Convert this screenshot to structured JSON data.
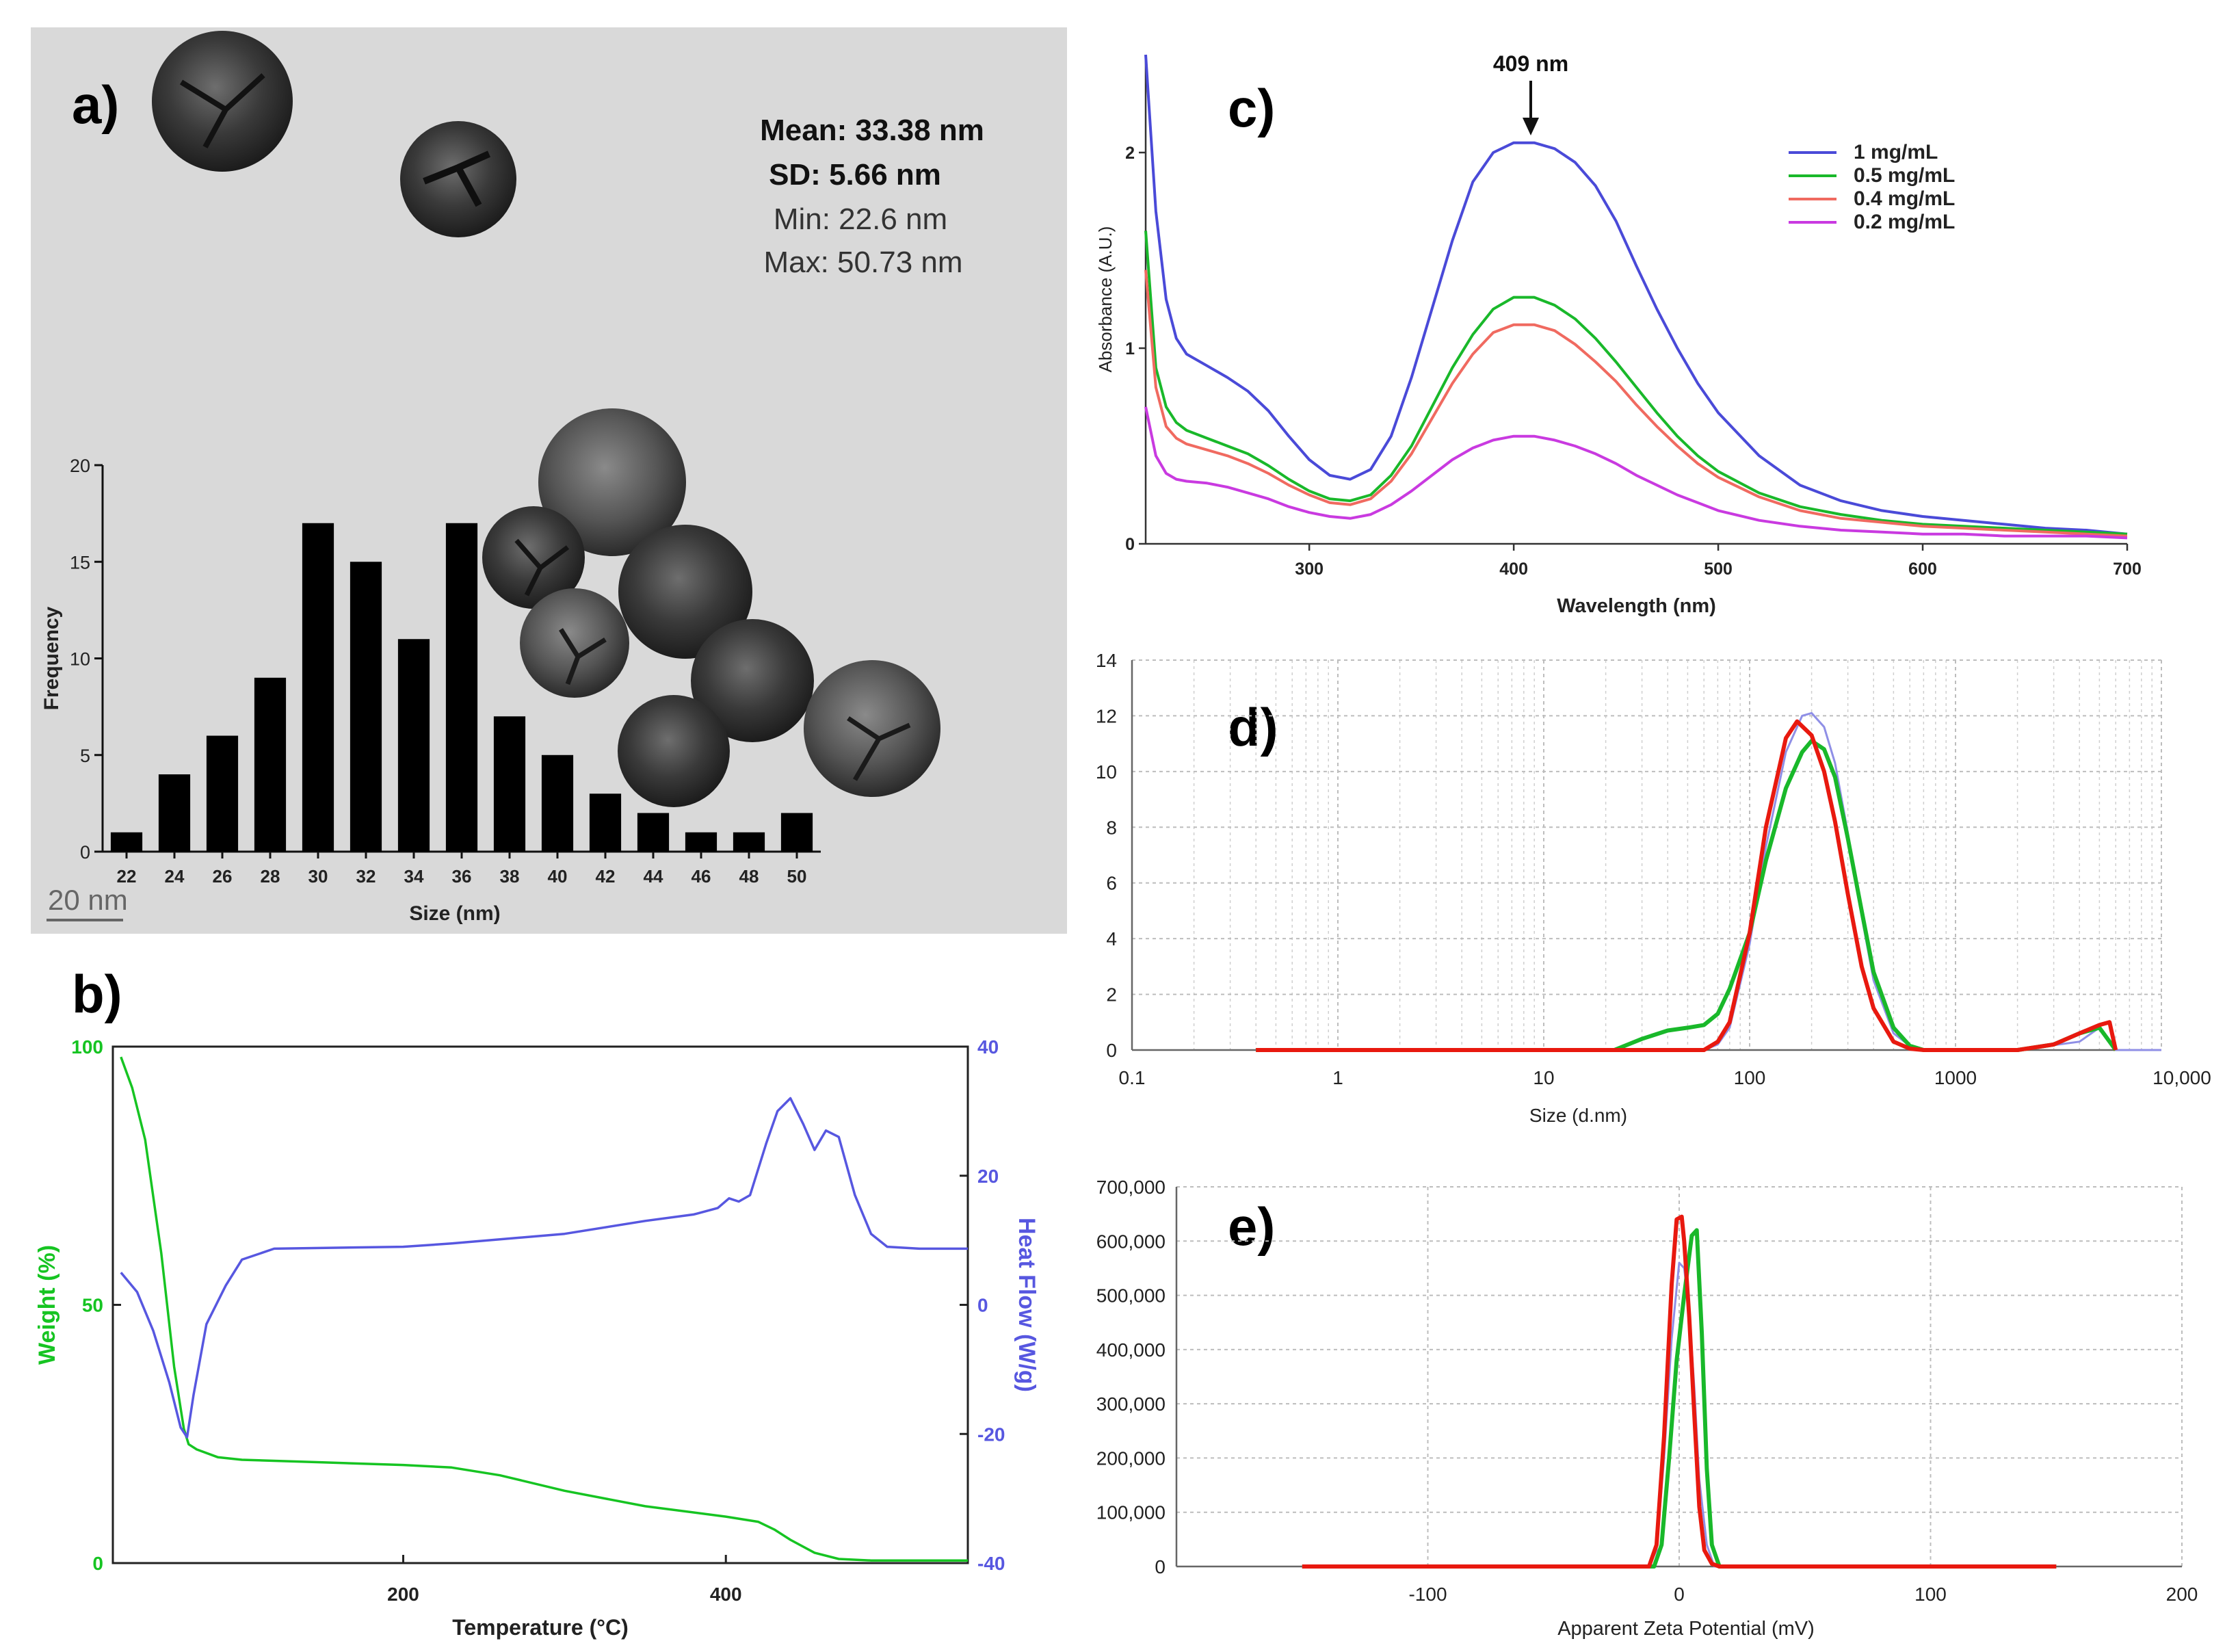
{
  "panels": {
    "a": {
      "label": "a)",
      "stats": {
        "mean": "Mean: 33.38 nm",
        "sd": "SD: 5.66 nm",
        "min": "Min: 22.6 nm",
        "max": "Max: 50.73 nm"
      },
      "scale_bar": "20 nm"
    },
    "b": {
      "label": "b)"
    },
    "c": {
      "label": "c)",
      "annotation": "409 nm"
    },
    "d": {
      "label": "d)"
    },
    "e": {
      "label": "e)"
    }
  },
  "colors": {
    "blue": "#4a4ad8",
    "green": "#19b82a",
    "red": "#e8190f",
    "salmon": "#f06a60",
    "magenta": "#c93ae0",
    "dls_blue": "#8f8fe6",
    "tga_green": "#16c422",
    "tga_blue": "#5757e0"
  },
  "chart_data": [
    {
      "id": "a",
      "type": "bar",
      "title": "",
      "xlabel": "Size (nm)",
      "ylabel": "Frequency",
      "categories": [
        "22",
        "24",
        "26",
        "28",
        "30",
        "32",
        "34",
        "36",
        "38",
        "40",
        "42",
        "44",
        "46",
        "48",
        "50"
      ],
      "values": [
        1,
        4,
        6,
        9,
        17,
        15,
        11,
        17,
        7,
        5,
        3,
        2,
        1,
        1,
        2
      ],
      "ylim": [
        0,
        20
      ],
      "yticks": [
        0,
        5,
        10,
        15,
        20
      ]
    },
    {
      "id": "b",
      "type": "line",
      "xlabel": "Temperature (°C)",
      "ylabel": "Weight (%)",
      "ylabel_right": "Heat Flow (W/g)",
      "xlim": [
        20,
        550
      ],
      "ylim": [
        0,
        100
      ],
      "ylim_right": [
        -40,
        40
      ],
      "xticks": [
        200,
        400
      ],
      "yticks": [
        0,
        50,
        100
      ],
      "yticks_right": [
        -40,
        -20,
        0,
        20,
        40
      ],
      "series": [
        {
          "name": "Weight",
          "axis": "left",
          "color": "#16c422",
          "x": [
            25,
            32,
            40,
            50,
            58,
            64,
            67,
            72,
            85,
            100,
            150,
            200,
            230,
            260,
            300,
            350,
            400,
            420,
            430,
            440,
            455,
            470,
            490,
            520,
            550
          ],
          "y": [
            98,
            92,
            82,
            60,
            38,
            26,
            23,
            22,
            20.5,
            20,
            19.5,
            19,
            18.5,
            17,
            14,
            11,
            9,
            8,
            6.5,
            4.5,
            2,
            0.8,
            0.5,
            0.5,
            0.5
          ]
        },
        {
          "name": "Heat Flow",
          "axis": "right",
          "color": "#5757e0",
          "x": [
            25,
            35,
            45,
            55,
            62,
            66,
            70,
            78,
            90,
            100,
            120,
            200,
            230,
            300,
            350,
            380,
            395,
            402,
            408,
            415,
            425,
            432,
            440,
            448,
            455,
            462,
            470,
            480,
            490,
            500,
            520,
            550
          ],
          "y": [
            5,
            2,
            -4,
            -12,
            -19,
            -20.5,
            -14,
            -3,
            3,
            7,
            8.7,
            9,
            9.5,
            11,
            13,
            14,
            15,
            16.5,
            16,
            17,
            25,
            30,
            32,
            28,
            24,
            27,
            26,
            17,
            11,
            9,
            8.7,
            8.7
          ]
        }
      ]
    },
    {
      "id": "c",
      "type": "line",
      "xlabel": "Wavelength (nm)",
      "ylabel": "Absorbance (A.U.)",
      "xlim": [
        220,
        700
      ],
      "ylim": [
        0,
        2.5
      ],
      "xticks": [
        300,
        400,
        500,
        600,
        700
      ],
      "yticks": [
        0,
        1,
        2
      ],
      "legend_position": "top-right",
      "x": [
        220,
        225,
        230,
        235,
        240,
        250,
        260,
        270,
        280,
        290,
        300,
        310,
        320,
        330,
        340,
        350,
        360,
        370,
        380,
        390,
        400,
        410,
        420,
        430,
        440,
        450,
        460,
        470,
        480,
        490,
        500,
        520,
        540,
        560,
        580,
        600,
        620,
        640,
        660,
        680,
        700
      ],
      "series": [
        {
          "name": "1 mg/mL",
          "color": "#4a4ad8",
          "values": [
            2.5,
            1.7,
            1.25,
            1.05,
            0.97,
            0.91,
            0.85,
            0.78,
            0.68,
            0.55,
            0.43,
            0.35,
            0.33,
            0.38,
            0.55,
            0.85,
            1.2,
            1.55,
            1.85,
            2.0,
            2.05,
            2.05,
            2.02,
            1.95,
            1.83,
            1.65,
            1.42,
            1.2,
            1.0,
            0.82,
            0.67,
            0.45,
            0.3,
            0.22,
            0.17,
            0.14,
            0.12,
            0.1,
            0.08,
            0.07,
            0.05
          ]
        },
        {
          "name": "0.5 mg/mL",
          "color": "#19b82a",
          "values": [
            1.6,
            0.9,
            0.7,
            0.62,
            0.58,
            0.54,
            0.5,
            0.46,
            0.4,
            0.33,
            0.27,
            0.23,
            0.22,
            0.25,
            0.35,
            0.5,
            0.7,
            0.9,
            1.07,
            1.2,
            1.26,
            1.26,
            1.22,
            1.15,
            1.05,
            0.93,
            0.8,
            0.67,
            0.55,
            0.45,
            0.37,
            0.26,
            0.19,
            0.15,
            0.12,
            0.1,
            0.09,
            0.08,
            0.07,
            0.06,
            0.05
          ]
        },
        {
          "name": "0.4 mg/mL",
          "color": "#f06a60",
          "values": [
            1.4,
            0.8,
            0.6,
            0.54,
            0.51,
            0.48,
            0.45,
            0.41,
            0.36,
            0.3,
            0.25,
            0.21,
            0.2,
            0.23,
            0.32,
            0.46,
            0.64,
            0.82,
            0.97,
            1.08,
            1.12,
            1.12,
            1.09,
            1.02,
            0.93,
            0.83,
            0.71,
            0.6,
            0.5,
            0.41,
            0.34,
            0.24,
            0.17,
            0.13,
            0.11,
            0.09,
            0.08,
            0.07,
            0.06,
            0.05,
            0.04
          ]
        },
        {
          "name": "0.2 mg/mL",
          "color": "#c93ae0",
          "values": [
            0.7,
            0.45,
            0.36,
            0.33,
            0.32,
            0.31,
            0.29,
            0.26,
            0.23,
            0.19,
            0.16,
            0.14,
            0.13,
            0.15,
            0.2,
            0.27,
            0.35,
            0.43,
            0.49,
            0.53,
            0.55,
            0.55,
            0.53,
            0.5,
            0.46,
            0.41,
            0.35,
            0.3,
            0.25,
            0.21,
            0.17,
            0.12,
            0.09,
            0.07,
            0.06,
            0.05,
            0.05,
            0.04,
            0.04,
            0.04,
            0.03
          ]
        }
      ]
    },
    {
      "id": "d",
      "type": "line",
      "xlabel": "Size (d.nm)",
      "ylabel": "",
      "xscale": "log",
      "xlim": [
        0.1,
        10000
      ],
      "ylim": [
        0,
        14
      ],
      "xticks": [
        0.1,
        1,
        10,
        100,
        1000,
        10000
      ],
      "xticklabels": [
        "0.1",
        "1",
        "10",
        "100",
        "1000",
        "10,000"
      ],
      "yticks": [
        0,
        2,
        4,
        6,
        8,
        10,
        12,
        14
      ],
      "series": [
        {
          "name": "blue",
          "color": "#8f8fe6",
          "x": [
            0.4,
            60,
            70,
            80,
            100,
            120,
            150,
            180,
            200,
            230,
            260,
            300,
            350,
            400,
            500,
            600,
            700,
            2000,
            4000,
            5000,
            6000,
            10000
          ],
          "y": [
            0,
            0,
            0.2,
            0.8,
            3.8,
            7.3,
            10.7,
            12.0,
            12.1,
            11.6,
            10.3,
            7.8,
            4.8,
            2.5,
            0.6,
            0.15,
            0,
            0,
            0.3,
            0.8,
            0,
            0
          ]
        },
        {
          "name": "green",
          "color": "#19b82a",
          "x": [
            0.4,
            22,
            30,
            40,
            50,
            60,
            70,
            80,
            100,
            120,
            150,
            180,
            200,
            230,
            260,
            300,
            350,
            400,
            500,
            600,
            700,
            2000,
            3000,
            4000,
            5000,
            6000
          ],
          "y": [
            0,
            0,
            0.4,
            0.7,
            0.8,
            0.9,
            1.3,
            2.2,
            4.2,
            6.8,
            9.4,
            10.7,
            11.1,
            10.8,
            9.8,
            7.6,
            5,
            2.8,
            0.8,
            0.15,
            0,
            0,
            0.2,
            0.6,
            0.8,
            0
          ]
        },
        {
          "name": "red",
          "color": "#e8190f",
          "x": [
            0.4,
            60,
            70,
            80,
            100,
            120,
            150,
            170,
            200,
            230,
            260,
            300,
            350,
            400,
            500,
            600,
            700,
            2000,
            3000,
            4000,
            5000,
            5600,
            6000
          ],
          "y": [
            0,
            0,
            0.3,
            1.0,
            4.2,
            8.0,
            11.2,
            11.8,
            11.3,
            10.0,
            8.2,
            5.6,
            3.0,
            1.5,
            0.3,
            0.05,
            0,
            0,
            0.2,
            0.6,
            0.9,
            1.0,
            0
          ]
        }
      ]
    },
    {
      "id": "e",
      "type": "line",
      "xlabel": "Apparent Zeta Potential (mV)",
      "ylabel": "",
      "xlim": [
        -200,
        200
      ],
      "ylim": [
        0,
        700000
      ],
      "xticks": [
        -100,
        0,
        100,
        200
      ],
      "xticklabels": [
        "-100",
        "0",
        "100",
        "200"
      ],
      "yticks": [
        0,
        100000,
        200000,
        300000,
        400000,
        500000,
        600000,
        700000
      ],
      "yticklabels": [
        "0",
        "100,000",
        "200,000",
        "300,000",
        "400,000",
        "500,000",
        "600,000",
        "700,000"
      ],
      "series": [
        {
          "name": "blue",
          "color": "#8f8fe6",
          "x": [
            -150,
            -12,
            -9,
            -6,
            -3,
            0,
            2,
            4,
            6,
            8,
            11,
            14,
            150
          ],
          "y": [
            0,
            0,
            30000,
            200000,
            420000,
            560000,
            550000,
            470000,
            330000,
            160000,
            40000,
            0,
            0
          ]
        },
        {
          "name": "green",
          "color": "#19b82a",
          "x": [
            -150,
            -10,
            -7,
            -4,
            -1,
            2,
            5,
            7,
            9,
            11,
            13,
            16,
            150
          ],
          "y": [
            0,
            0,
            40000,
            200000,
            380000,
            500000,
            610000,
            620000,
            430000,
            180000,
            40000,
            0,
            0
          ]
        },
        {
          "name": "red",
          "color": "#e8190f",
          "x": [
            -150,
            -12,
            -9,
            -6,
            -3,
            -1,
            1,
            2,
            4,
            6,
            8,
            10,
            13,
            16,
            150
          ],
          "y": [
            0,
            0,
            40000,
            240000,
            520000,
            640000,
            645000,
            600000,
            460000,
            280000,
            110000,
            30000,
            5000,
            0,
            0
          ]
        }
      ]
    }
  ]
}
